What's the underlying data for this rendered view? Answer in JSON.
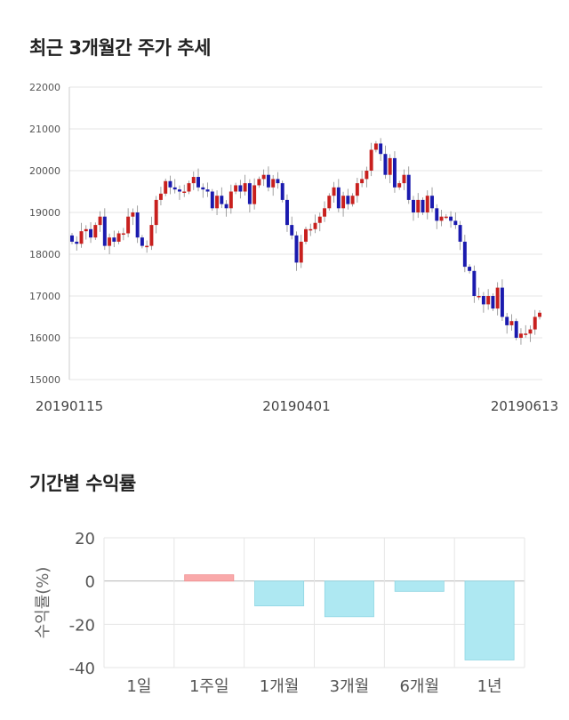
{
  "titles": {
    "price_trend": "최근 3개월간 주가 추세",
    "period_returns": "기간별 수익률"
  },
  "colors": {
    "up": "#c8201e",
    "down": "#1a1aae",
    "grid": "#e6e6e6",
    "positive_bar": "#f9a9aa",
    "negative_bar": "#aee8f2"
  },
  "chart_data": [
    {
      "type": "candlestick",
      "title": "최근 3개월간 주가 추세",
      "ylim": [
        15000,
        22000
      ],
      "yticks": [
        15000,
        16000,
        17000,
        18000,
        19000,
        20000,
        21000,
        22000
      ],
      "x_tick_labels": [
        "20190115",
        "20190401",
        "20190613"
      ],
      "grid": true,
      "close": [
        18300,
        18250,
        18550,
        18600,
        18400,
        18700,
        18900,
        18200,
        18400,
        18300,
        18500,
        18500,
        18900,
        19000,
        18400,
        18200,
        18200,
        18700,
        19300,
        19450,
        19750,
        19600,
        19550,
        19500,
        19500,
        19700,
        19850,
        19600,
        19550,
        19500,
        19100,
        19400,
        19200,
        19100,
        19500,
        19650,
        19500,
        19700,
        19200,
        19650,
        19800,
        19900,
        19600,
        19800,
        19700,
        19300,
        18700,
        18450,
        17800,
        18300,
        18600,
        18600,
        18750,
        18900,
        19100,
        19400,
        19600,
        19100,
        19400,
        19200,
        19400,
        19700,
        19800,
        20000,
        20500,
        20650,
        20400,
        19900,
        20300,
        19600,
        19700,
        19900,
        19300,
        19000,
        19300,
        19000,
        19400,
        19100,
        18800,
        18900,
        18900,
        18800,
        18700,
        18300,
        17700,
        17600,
        17000,
        17000,
        16800,
        17000,
        16700,
        17200,
        16500,
        16300,
        16400,
        16000,
        16100,
        16100,
        16200,
        16500,
        16600
      ],
      "x_start_label": "20190115",
      "x_end_label": "20190613"
    },
    {
      "type": "bar",
      "categories": [
        "1일",
        "1주일",
        "1개월",
        "3개월",
        "6개월",
        "1년"
      ],
      "values": [
        0,
        2.9,
        -11.5,
        -16.5,
        -4.8,
        -36.5
      ],
      "ylabel": "수익률(%)",
      "ylim": [
        -40,
        20
      ],
      "yticks": [
        20,
        0,
        -20,
        -40
      ],
      "grid": true
    }
  ]
}
